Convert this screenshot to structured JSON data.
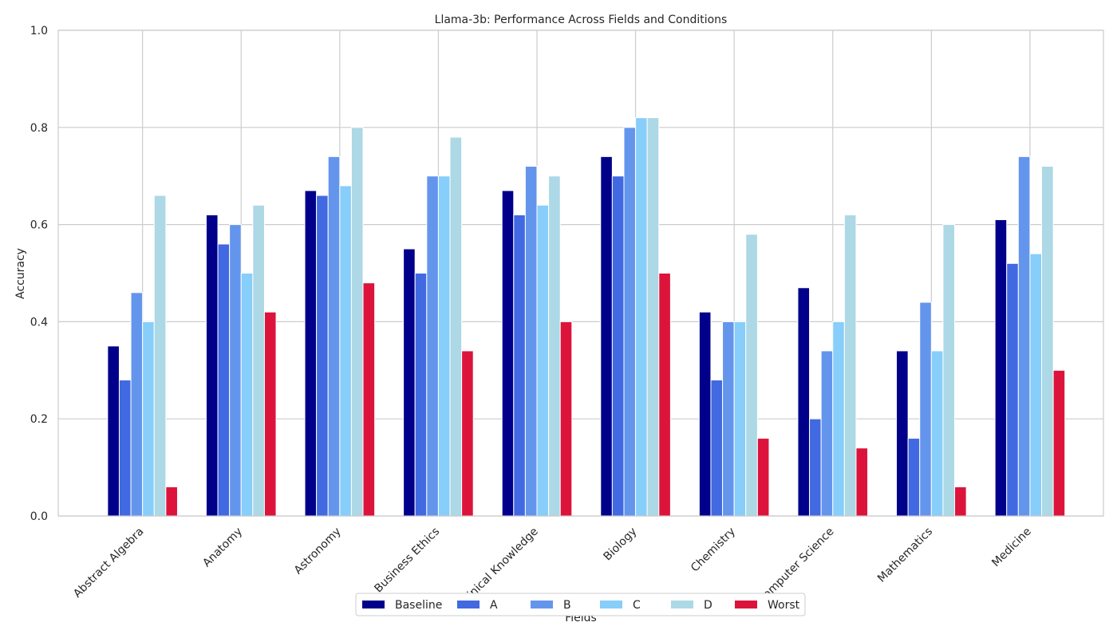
{
  "chart_data": {
    "type": "bar",
    "title": "Llama-3b: Performance Across Fields and Conditions",
    "xlabel": "Fields",
    "ylabel": "Accuracy",
    "ylim": [
      0,
      1.0
    ],
    "yticks": [
      "0.0",
      "0.2",
      "0.4",
      "0.6",
      "0.8",
      "1.0"
    ],
    "grid": true,
    "legend_placement": "bottom-center",
    "categories": [
      "Abstract Algebra",
      "Anatomy",
      "Astronomy",
      "Business Ethics",
      "Clinical Knowledge",
      "Biology",
      "Chemistry",
      "Computer Science",
      "Mathematics",
      "Medicine"
    ],
    "series": [
      {
        "name": "Baseline",
        "color": "#00008b",
        "values": [
          0.35,
          0.62,
          0.67,
          0.55,
          0.67,
          0.74,
          0.42,
          0.47,
          0.34,
          0.61
        ]
      },
      {
        "name": "A",
        "color": "#4169e1",
        "values": [
          0.28,
          0.56,
          0.66,
          0.5,
          0.62,
          0.7,
          0.28,
          0.2,
          0.16,
          0.52
        ]
      },
      {
        "name": "B",
        "color": "#6495ed",
        "values": [
          0.46,
          0.6,
          0.74,
          0.7,
          0.72,
          0.8,
          0.4,
          0.34,
          0.44,
          0.74
        ]
      },
      {
        "name": "C",
        "color": "#87cefa",
        "values": [
          0.4,
          0.5,
          0.68,
          0.7,
          0.64,
          0.82,
          0.4,
          0.4,
          0.34,
          0.54
        ]
      },
      {
        "name": "D",
        "color": "#add8e6",
        "values": [
          0.66,
          0.64,
          0.8,
          0.78,
          0.7,
          0.82,
          0.58,
          0.62,
          0.6,
          0.72
        ]
      },
      {
        "name": "Worst",
        "color": "#dc143c",
        "values": [
          0.06,
          0.42,
          0.48,
          0.34,
          0.4,
          0.5,
          0.16,
          0.14,
          0.06,
          0.3
        ]
      }
    ]
  }
}
